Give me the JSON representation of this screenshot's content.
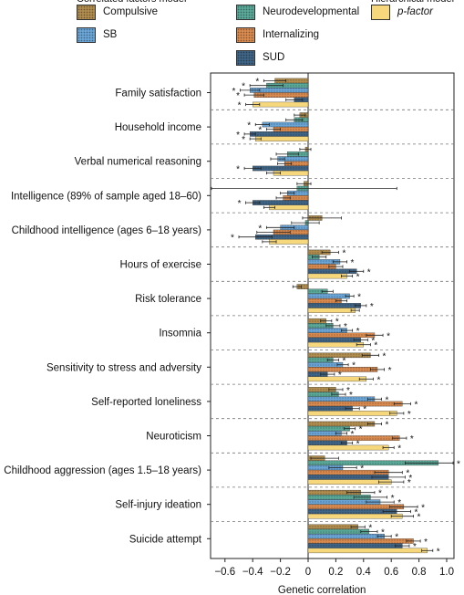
{
  "legend": {
    "groups": [
      {
        "title": "Correlated factors model",
        "items": [
          0,
          3
        ]
      },
      {
        "title": "",
        "items": [
          1,
          4,
          5
        ]
      },
      {
        "title": "Hierarchical model",
        "items": [
          2
        ]
      }
    ],
    "entries": [
      {
        "label": "Compulsive",
        "color": "#b08d4e",
        "pattern": "dots"
      },
      {
        "label": "Neurodevelopmental",
        "color": "#5aa897",
        "pattern": "dots"
      },
      {
        "label": "p-factor",
        "color": "#f6d77c",
        "pattern": "none"
      },
      {
        "label": "SB",
        "color": "#6aa5d6",
        "pattern": "dots"
      },
      {
        "label": "Internalizing",
        "color": "#d98a4f",
        "pattern": "dots"
      },
      {
        "label": "SUD",
        "color": "#3f6485",
        "pattern": "dots"
      }
    ]
  },
  "chart_data": {
    "type": "bar",
    "orientation": "horizontal",
    "xlabel": "Genetic correlation",
    "xlim": [
      -0.72,
      1.1
    ],
    "xticks": [
      -0.6,
      -0.4,
      -0.2,
      0,
      0.2,
      0.4,
      0.6,
      0.8,
      1.0
    ],
    "xtick_labels": [
      "−0.6",
      "−0.4",
      "−0.2",
      "0",
      "0.2",
      "0.4",
      "0.6",
      "0.8",
      "1.0"
    ],
    "series_order": [
      "Compulsive",
      "Neurodevelopmental",
      "SB",
      "Internalizing",
      "SUD",
      "p-factor"
    ],
    "categories": [
      {
        "label": "Family satisfaction",
        "values": [
          -0.24,
          -0.3,
          -0.42,
          -0.39,
          -0.1,
          -0.4
        ],
        "ci": [
          0.08,
          0.12,
          0.07,
          0.07,
          0.06,
          0.05
        ],
        "sig": [
          true,
          true,
          true,
          true,
          false,
          true
        ]
      },
      {
        "label": "Household income",
        "values": [
          -0.06,
          -0.1,
          -0.33,
          -0.25,
          -0.42,
          -0.38
        ],
        "ci": [
          0.04,
          0.06,
          0.05,
          0.05,
          0.04,
          0.04
        ],
        "sig": [
          false,
          false,
          true,
          true,
          true,
          true
        ]
      },
      {
        "label": "Verbal numerical reasoning",
        "values": [
          -0.02,
          -0.15,
          -0.22,
          -0.17,
          -0.4,
          -0.25
        ],
        "ci": [
          0.04,
          0.08,
          0.05,
          0.05,
          0.06,
          0.05
        ],
        "sig": [
          false,
          false,
          false,
          false,
          true,
          false
        ]
      },
      {
        "label": "Intelligence (89% of sample aged 18–60)",
        "values": [
          -0.03,
          -0.08,
          -0.15,
          -0.18,
          -0.4,
          -0.28
        ],
        "ci": [
          0.05,
          0.72,
          0.05,
          0.05,
          0.05,
          0.04
        ],
        "sig": [
          false,
          false,
          false,
          false,
          true,
          false
        ]
      },
      {
        "label": "Childhood intelligence (ages 6–18 years)",
        "values": [
          0.1,
          -0.02,
          -0.2,
          -0.25,
          -0.38,
          -0.28
        ],
        "ci": [
          0.14,
          0.1,
          0.1,
          0.12,
          0.12,
          0.05
        ],
        "sig": [
          false,
          false,
          true,
          false,
          true,
          false
        ]
      },
      {
        "label": "Hours of exercise",
        "values": [
          0.16,
          0.08,
          0.23,
          0.2,
          0.35,
          0.28
        ],
        "ci": [
          0.06,
          0.05,
          0.05,
          0.05,
          0.05,
          0.04
        ],
        "sig": [
          true,
          false,
          true,
          false,
          true,
          true
        ]
      },
      {
        "label": "Risk tolerance",
        "values": [
          -0.08,
          0.14,
          0.3,
          0.24,
          0.38,
          0.34
        ],
        "ci": [
          0.03,
          0.04,
          0.03,
          0.04,
          0.04,
          0.03
        ],
        "sig": [
          false,
          false,
          true,
          false,
          true,
          false
        ]
      },
      {
        "label": "Insomnia ",
        "values": [
          0.13,
          0.18,
          0.28,
          0.48,
          0.38,
          0.4
        ],
        "ci": [
          0.04,
          0.05,
          0.04,
          0.06,
          0.05,
          0.05
        ],
        "sig": [
          true,
          true,
          true,
          true,
          true,
          true
        ]
      },
      {
        "label": "Sensitivity to stress and adversity",
        "values": [
          0.45,
          0.18,
          0.25,
          0.5,
          0.14,
          0.42
        ],
        "ci": [
          0.06,
          0.04,
          0.04,
          0.05,
          0.05,
          0.05
        ],
        "sig": [
          true,
          true,
          true,
          true,
          true,
          true
        ]
      },
      {
        "label": "Self-reported loneliness",
        "values": [
          0.2,
          0.22,
          0.48,
          0.68,
          0.32,
          0.64
        ],
        "ci": [
          0.05,
          0.05,
          0.05,
          0.06,
          0.05,
          0.05
        ],
        "sig": [
          true,
          true,
          true,
          true,
          true,
          true
        ]
      },
      {
        "label": "Neuroticism",
        "values": [
          0.48,
          0.3,
          0.24,
          0.66,
          0.28,
          0.58
        ],
        "ci": [
          0.05,
          0.04,
          0.04,
          0.05,
          0.04,
          0.04
        ],
        "sig": [
          true,
          true,
          true,
          true,
          true,
          true
        ]
      },
      {
        "label": "Childhood aggression (ages 1.5–18 years)",
        "values": [
          0.12,
          0.94,
          0.25,
          0.58,
          0.58,
          0.6
        ],
        "ci": [
          0.1,
          0.24,
          0.1,
          0.1,
          0.12,
          0.09
        ],
        "sig": [
          false,
          true,
          true,
          true,
          true,
          true
        ]
      },
      {
        "label": "Self-injury ideation",
        "values": [
          0.38,
          0.45,
          0.52,
          0.69,
          0.64,
          0.68
        ],
        "ci": [
          0.1,
          0.12,
          0.1,
          0.1,
          0.1,
          0.08
        ],
        "sig": [
          true,
          true,
          true,
          true,
          true,
          true
        ]
      },
      {
        "label": "Suicide attempt",
        "values": [
          0.36,
          0.44,
          0.55,
          0.76,
          0.68,
          0.86
        ],
        "ci": [
          0.05,
          0.06,
          0.05,
          0.05,
          0.05,
          0.04
        ],
        "sig": [
          true,
          true,
          true,
          true,
          true,
          true
        ]
      }
    ]
  }
}
